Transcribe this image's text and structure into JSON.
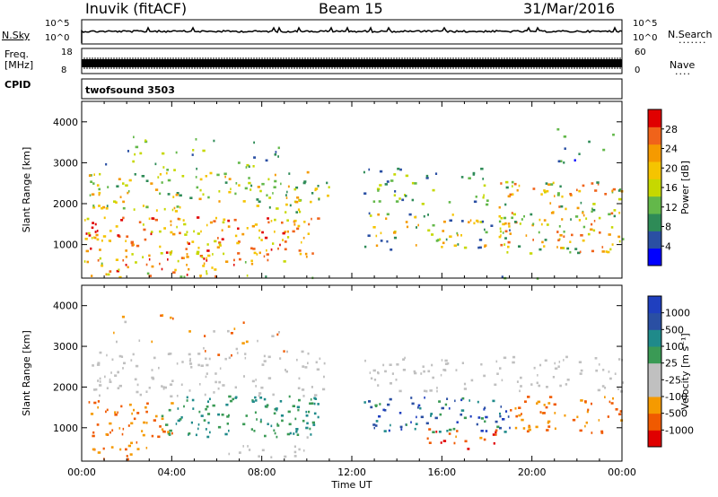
{
  "header": {
    "station": "Inuvik (fitACF)",
    "beam": "Beam 15",
    "date": "31/Mar/2016"
  },
  "top_panels": {
    "nsky_label": "N.Sky",
    "nsky_ticks": [
      "10^5",
      "10^0"
    ],
    "nsearch_label": "N.Search",
    "freq_label_1": "Freq.",
    "freq_label_2": "[MHz]",
    "freq_ticks": [
      "18",
      "8"
    ],
    "nave_label": "Nave",
    "nave_ticks": [
      "60",
      "0"
    ],
    "cpid_label": "CPID",
    "cpid_value": "twofsound 3503"
  },
  "chart_data": [
    {
      "type": "heatmap",
      "name": "power-panel",
      "xlabel": "",
      "ylabel": "Slant Range [km]",
      "yticks": [
        1000,
        2000,
        3000,
        4000
      ],
      "ylim": [
        180,
        4500
      ],
      "xlim_hours": [
        0,
        24
      ],
      "colorbar_label": "Power [dB]",
      "colorbar_ticks": [
        "28",
        "24",
        "20",
        "16",
        "12",
        "8",
        "4"
      ],
      "colorbar_colors": [
        "#0000ff",
        "#2a4fa3",
        "#2e8b57",
        "#63b84a",
        "#c6d800",
        "#f5c400",
        "#f59a00",
        "#f0631a",
        "#e00000"
      ],
      "palette": [
        "#0000ff",
        "#2a4fa3",
        "#2e8b57",
        "#63b84a",
        "#c6d800",
        "#f5c400",
        "#f59a00",
        "#f0631a",
        "#e00000"
      ],
      "blobs": [
        {
          "t0": 0.1,
          "t1": 10.5,
          "r0": 600,
          "r1": 1700,
          "c": [
            4,
            8
          ],
          "d": 0.9
        },
        {
          "t0": 0.3,
          "t1": 11.0,
          "r0": 1800,
          "r1": 2800,
          "c": [
            2,
            6
          ],
          "d": 0.7
        },
        {
          "t0": 0.1,
          "t1": 8.5,
          "r0": 200,
          "r1": 600,
          "c": [
            3,
            8
          ],
          "d": 0.6
        },
        {
          "t0": 12.5,
          "t1": 19.0,
          "r0": 900,
          "r1": 1800,
          "c": [
            1,
            6
          ],
          "d": 0.7
        },
        {
          "t0": 12.5,
          "t1": 18.0,
          "r0": 2000,
          "r1": 2900,
          "c": [
            1,
            4
          ],
          "d": 0.5
        },
        {
          "t0": 18.5,
          "t1": 24.0,
          "r0": 800,
          "r1": 2600,
          "c": [
            2,
            7
          ],
          "d": 0.8
        },
        {
          "t0": 1.0,
          "t1": 9.0,
          "r0": 2800,
          "r1": 3700,
          "c": [
            1,
            4
          ],
          "d": 0.25
        },
        {
          "t0": 20.5,
          "t1": 24.0,
          "r0": 3000,
          "r1": 3900,
          "c": [
            0,
            3
          ],
          "d": 0.2
        },
        {
          "t0": 4.0,
          "t1": 22.0,
          "r0": 190,
          "r1": 260,
          "c": [
            1,
            3
          ],
          "d": 0.25
        }
      ]
    },
    {
      "type": "heatmap",
      "name": "velocity-panel",
      "xlabel": "Time UT",
      "ylabel": "Slant Range [km]",
      "xticks": [
        "00:00",
        "04:00",
        "08:00",
        "12:00",
        "16:00",
        "20:00",
        "00:00"
      ],
      "yticks": [
        1000,
        2000,
        3000,
        4000
      ],
      "ylim": [
        180,
        4500
      ],
      "xlim_hours": [
        0,
        24
      ],
      "colorbar_label": "Velocity [m s⁻¹]",
      "colorbar_ticks": [
        "1000",
        "500",
        "100",
        "25",
        "-25",
        "-100",
        "-500",
        "-1000"
      ],
      "colorbar_colors": [
        "#e00000",
        "#f05a00",
        "#f59a00",
        "#c0c0c0",
        "#c0c0c0",
        "#3a9a55",
        "#1f8a8a",
        "#2a4fa3",
        "#1f3fbf"
      ],
      "palette": [
        "#e00000",
        "#f05a00",
        "#f59a00",
        "#c0c0c0",
        "#c0c0c0",
        "#3a9a55",
        "#1f8a8a",
        "#2a4fa3",
        "#1f3fbf"
      ],
      "blobs": [
        {
          "t0": 3.5,
          "t1": 10.5,
          "r0": 800,
          "r1": 1800,
          "c": [
            5,
            6
          ],
          "d": 0.9
        },
        {
          "t0": 0.3,
          "t1": 4.0,
          "r0": 800,
          "r1": 1700,
          "c": [
            1,
            2
          ],
          "d": 0.8
        },
        {
          "t0": 0.1,
          "t1": 3.0,
          "r0": 200,
          "r1": 700,
          "c": [
            1,
            2
          ],
          "d": 0.6
        },
        {
          "t0": 0.3,
          "t1": 11.0,
          "r0": 1800,
          "r1": 2900,
          "c": [
            3,
            4
          ],
          "d": 0.55
        },
        {
          "t0": 12.5,
          "t1": 19.0,
          "r0": 900,
          "r1": 1800,
          "c": [
            5,
            8
          ],
          "d": 0.75
        },
        {
          "t0": 15.0,
          "t1": 18.5,
          "r0": 500,
          "r1": 1000,
          "c": [
            0,
            2
          ],
          "d": 0.6
        },
        {
          "t0": 12.5,
          "t1": 24.0,
          "r0": 1900,
          "r1": 2800,
          "c": [
            3,
            4
          ],
          "d": 0.5
        },
        {
          "t0": 19.0,
          "t1": 24.0,
          "r0": 900,
          "r1": 1800,
          "c": [
            1,
            2
          ],
          "d": 0.7
        },
        {
          "t0": 6.0,
          "t1": 10.0,
          "r0": 300,
          "r1": 800,
          "c": [
            3,
            4
          ],
          "d": 0.4
        },
        {
          "t0": 1.0,
          "t1": 9.0,
          "r0": 2800,
          "r1": 3800,
          "c": [
            1,
            3
          ],
          "d": 0.2
        }
      ]
    }
  ]
}
